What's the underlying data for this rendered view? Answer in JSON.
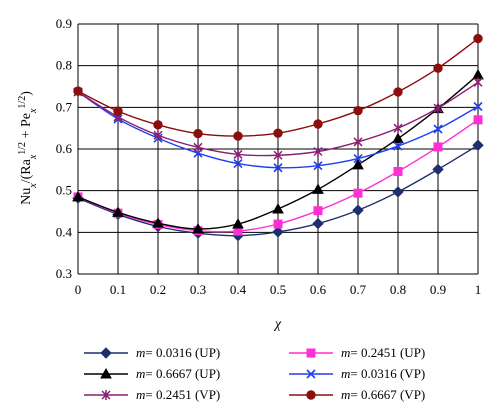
{
  "chart_data": {
    "type": "line",
    "xlabel": "χ",
    "ylabel": "Nu_x/(Ra_x^1/2 + Pe_x^1/2)",
    "ylabel_parts": {
      "nu": "Nu",
      "x": "x",
      "ra": "Ra",
      "pe": "Pe",
      "half": "1/2",
      "slash": "/(",
      "plus": " + ",
      "close": ")"
    },
    "xlim": [
      0,
      1
    ],
    "ylim": [
      0.3,
      0.9
    ],
    "x": [
      0,
      0.1,
      0.2,
      0.3,
      0.4,
      0.5,
      0.6,
      0.7,
      0.8,
      0.9,
      1
    ],
    "x_ticks": [
      "0",
      "0.1",
      "0.2",
      "0.3",
      "0.4",
      "0.5",
      "0.6",
      "0.7",
      "0.8",
      "0.9",
      "1"
    ],
    "y_ticks": [
      "0.3",
      "0.4",
      "0.5",
      "0.6",
      "0.7",
      "0.8",
      "0.9"
    ],
    "grid": true,
    "legend_position": "bottom",
    "series": [
      {
        "name": "m = 0.0316 (UP)",
        "m": "m",
        "rest": " = 0.0316 (UP)",
        "color": "#1f2f6e",
        "marker": "diamond",
        "values": [
          0.482,
          0.443,
          0.414,
          0.398,
          0.392,
          0.401,
          0.421,
          0.453,
          0.497,
          0.551,
          0.609
        ]
      },
      {
        "name": "m = 0.2451 (UP)",
        "m": "m",
        "rest": " = 0.2451 (UP)",
        "color": "#ff2fd6",
        "marker": "square",
        "values": [
          0.485,
          0.446,
          0.419,
          0.404,
          0.403,
          0.42,
          0.452,
          0.494,
          0.546,
          0.605,
          0.67
        ]
      },
      {
        "name": "m = 0.6667 (UP)",
        "m": "m",
        "rest": " = 0.6667 (UP)",
        "color": "#000000",
        "marker": "triangle",
        "values": [
          0.485,
          0.448,
          0.422,
          0.408,
          0.42,
          0.456,
          0.503,
          0.562,
          0.625,
          0.697,
          0.778
        ]
      },
      {
        "name": "m = 0.0316 (VP)",
        "m": "m",
        "rest": " = 0.0316 (VP)",
        "color": "#1f3ff5",
        "marker": "x",
        "values": [
          0.737,
          0.672,
          0.626,
          0.59,
          0.565,
          0.555,
          0.56,
          0.577,
          0.607,
          0.648,
          0.702
        ]
      },
      {
        "name": "m = 0.2451 (VP)",
        "m": "m",
        "rest": " = 0.2451 (VP)",
        "color": "#8a1f72",
        "marker": "star",
        "values": [
          0.737,
          0.677,
          0.633,
          0.604,
          0.587,
          0.585,
          0.594,
          0.617,
          0.65,
          0.698,
          0.76
        ]
      },
      {
        "name": "m = 0.6667 (VP)",
        "m": "m",
        "rest": " = 0.6667 (VP)",
        "color": "#8b0e0e",
        "marker": "circle",
        "values": [
          0.739,
          0.691,
          0.658,
          0.637,
          0.631,
          0.638,
          0.66,
          0.692,
          0.737,
          0.794,
          0.865
        ]
      }
    ],
    "legend_order": [
      0,
      1,
      2,
      3,
      4,
      5
    ]
  }
}
